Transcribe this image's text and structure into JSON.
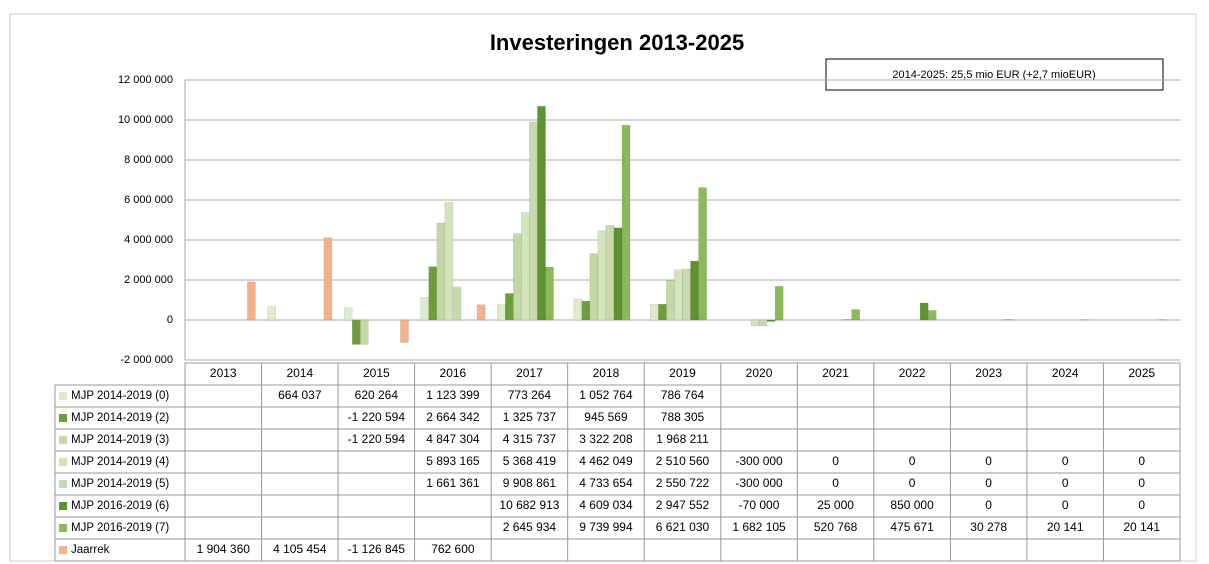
{
  "chart_data": {
    "type": "bar",
    "title": "Investeringen 2013-2025",
    "annotation": "2014-2025: 25,5 mio EUR (+2,7 mioEUR)",
    "categories": [
      "2013",
      "2014",
      "2015",
      "2016",
      "2017",
      "2018",
      "2019",
      "2020",
      "2021",
      "2022",
      "2023",
      "2024",
      "2025"
    ],
    "ylim": [
      -2000000,
      12000000
    ],
    "yticks": [
      {
        "value": -2000000,
        "label": "-2 000 000"
      },
      0,
      {
        "value": 2000000,
        "label": "2 000 000"
      },
      {
        "value": 4000000,
        "label": "4 000 000"
      },
      {
        "value": 6000000,
        "label": "6 000 000"
      },
      {
        "value": 8000000,
        "label": "8 000 000"
      },
      {
        "value": 10000000,
        "label": "10 000 000"
      },
      {
        "value": 12000000,
        "label": "12 000 000"
      }
    ],
    "grid": true,
    "series": [
      {
        "name": "MJP 2014-2019 (0)",
        "color": "#dfe9cc",
        "values": [
          null,
          664037,
          620264,
          1123399,
          773264,
          1052764,
          786764,
          null,
          null,
          null,
          null,
          null,
          null
        ],
        "value_labels": [
          null,
          "664 037",
          "620 264",
          "1 123 399",
          "773 264",
          "1 052 764",
          "786 764",
          null,
          null,
          null,
          null,
          null,
          null
        ]
      },
      {
        "name": "MJP 2014-2019 (2)",
        "color": "#6e9e3c",
        "values": [
          null,
          null,
          -1220594,
          2664342,
          1325737,
          945569,
          788305,
          null,
          null,
          null,
          null,
          null,
          null
        ],
        "value_labels": [
          null,
          null,
          "-1 220 594",
          "2 664 342",
          "1 325 737",
          "945 569",
          "788 305",
          null,
          null,
          null,
          null,
          null,
          null
        ]
      },
      {
        "name": "MJP 2014-2019 (3)",
        "color": "#c3d8a2",
        "values": [
          null,
          null,
          -1220594,
          4847304,
          4315737,
          3322208,
          1968211,
          null,
          null,
          null,
          null,
          null,
          null
        ],
        "value_labels": [
          null,
          null,
          "-1 220 594",
          "4 847 304",
          "4 315 737",
          "3 322 208",
          "1 968 211",
          null,
          null,
          null,
          null,
          null,
          null
        ]
      },
      {
        "name": "MJP 2014-2019 (4)",
        "color": "#d5e3bd",
        "values": [
          null,
          null,
          null,
          5893165,
          5368419,
          4462049,
          2510560,
          -300000,
          0,
          0,
          0,
          0,
          0
        ],
        "value_labels": [
          null,
          null,
          null,
          "5 893 165",
          "5 368 419",
          "4 462 049",
          "2 510 560",
          "-300 000",
          "0",
          "0",
          "0",
          "0",
          "0"
        ]
      },
      {
        "name": "MJP 2014-2019 (5)",
        "color": "#c8daab",
        "values": [
          null,
          null,
          null,
          1661361,
          9908861,
          4733654,
          2550722,
          -300000,
          0,
          0,
          0,
          0,
          0
        ],
        "value_labels": [
          null,
          null,
          null,
          "1 661 361",
          "9 908 861",
          "4 733 654",
          "2 550 722",
          "-300 000",
          "0",
          "0",
          "0",
          "0",
          "0"
        ]
      },
      {
        "name": "MJP 2016-2019 (6)",
        "color": "#5f9230",
        "values": [
          null,
          null,
          null,
          null,
          10682913,
          4609034,
          2947552,
          -70000,
          25000,
          850000,
          0,
          0,
          0
        ],
        "value_labels": [
          null,
          null,
          null,
          null,
          "10 682 913",
          "4 609 034",
          "2 947 552",
          "-70 000",
          "25 000",
          "850 000",
          "0",
          "0",
          "0"
        ]
      },
      {
        "name": "MJP 2016-2019 (7)",
        "color": "#8cb85a",
        "values": [
          null,
          null,
          null,
          null,
          2645934,
          9739994,
          6621030,
          1682105,
          520768,
          475671,
          30278,
          20141,
          20141
        ],
        "value_labels": [
          null,
          null,
          null,
          null,
          "2 645 934",
          "9 739 994",
          "6 621 030",
          "1 682 105",
          "520 768",
          "475 671",
          "30 278",
          "20 141",
          "20 141"
        ]
      },
      {
        "name": "Jaarrek",
        "color": "#f5b08c",
        "values": [
          1904360,
          4105454,
          -1126845,
          762600,
          null,
          null,
          null,
          null,
          null,
          null,
          null,
          null,
          null
        ],
        "value_labels": [
          "1 904 360",
          "4 105 454",
          "-1 126 845",
          "762 600",
          null,
          null,
          null,
          null,
          null,
          null,
          null,
          null,
          null
        ]
      }
    ]
  }
}
